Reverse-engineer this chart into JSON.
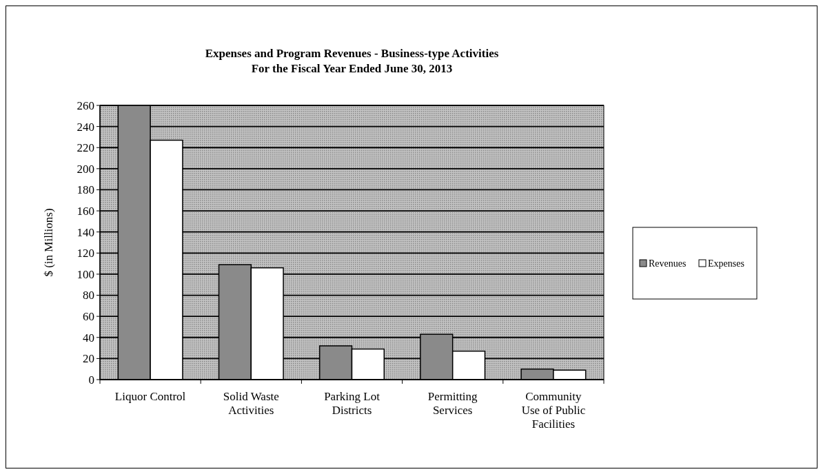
{
  "chart_data": {
    "type": "bar",
    "title": "Expenses and Program Revenues - Business-type Activities\nFor the Fiscal Year Ended June 30, 2013",
    "ylabel": "$ (in Millions)",
    "categories": [
      "Liquor Control",
      "Solid Waste\nActivities",
      "Parking Lot\nDistricts",
      "Permitting\nServices",
      "Community\nUse of Public\nFacilities"
    ],
    "series": [
      {
        "name": "Revenues",
        "color": "#8a8a8a",
        "values": [
          260,
          109,
          32,
          43,
          10
        ]
      },
      {
        "name": "Expenses",
        "color": "#ffffff",
        "values": [
          227,
          106,
          29,
          27,
          9
        ]
      }
    ],
    "ylim": [
      0,
      260
    ],
    "yticks": [
      0,
      20,
      40,
      60,
      80,
      100,
      120,
      140,
      160,
      180,
      200,
      220,
      240,
      260
    ],
    "grid": "y",
    "legend": "right"
  }
}
